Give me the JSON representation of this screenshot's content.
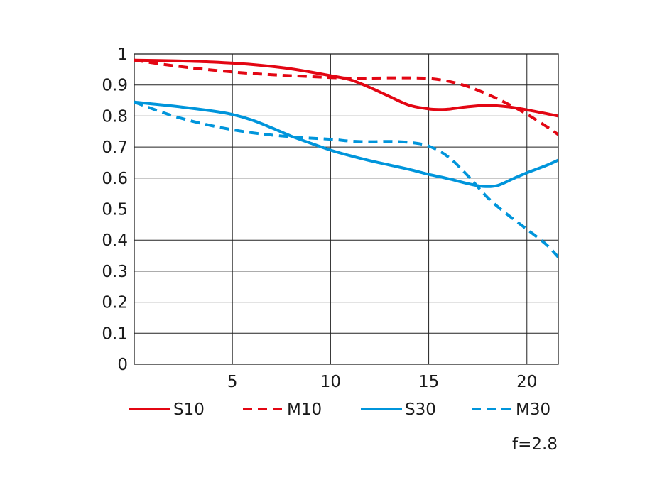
{
  "chart_data": {
    "type": "line",
    "title": "",
    "xlabel": "",
    "ylabel": "",
    "xlim": [
      0,
      21.6
    ],
    "ylim": [
      0,
      1
    ],
    "grid": true,
    "legend_position": "bottom",
    "xticks": [
      5,
      10,
      15,
      20
    ],
    "yticks": [
      0,
      0.1,
      0.2,
      0.3,
      0.4,
      0.5,
      0.6,
      0.7,
      0.8,
      0.9,
      1
    ],
    "ytick_labels": [
      "0",
      "0.1",
      "0.2",
      "0.3",
      "0.4",
      "0.5",
      "0.6",
      "0.7",
      "0.8",
      "0.9",
      "1"
    ],
    "annotation": "f=2.8",
    "series": [
      {
        "name": "S10",
        "color": "#e30613",
        "dash": "solid",
        "points": [
          [
            0,
            0.98
          ],
          [
            2,
            0.978
          ],
          [
            4,
            0.974
          ],
          [
            6,
            0.966
          ],
          [
            8,
            0.952
          ],
          [
            10,
            0.93
          ],
          [
            11,
            0.917
          ],
          [
            12,
            0.892
          ],
          [
            13,
            0.863
          ],
          [
            14,
            0.835
          ],
          [
            15,
            0.823
          ],
          [
            15.6,
            0.821
          ],
          [
            16,
            0.822
          ],
          [
            17,
            0.83
          ],
          [
            18,
            0.834
          ],
          [
            19,
            0.83
          ],
          [
            20,
            0.82
          ],
          [
            21.6,
            0.8
          ]
        ]
      },
      {
        "name": "M10",
        "color": "#e30613",
        "dash": "dashed",
        "points": [
          [
            0,
            0.98
          ],
          [
            2,
            0.962
          ],
          [
            4,
            0.948
          ],
          [
            6,
            0.937
          ],
          [
            8,
            0.93
          ],
          [
            10,
            0.924
          ],
          [
            11,
            0.922
          ],
          [
            12,
            0.922
          ],
          [
            13,
            0.923
          ],
          [
            14,
            0.923
          ],
          [
            15,
            0.921
          ],
          [
            16,
            0.912
          ],
          [
            17,
            0.895
          ],
          [
            18,
            0.87
          ],
          [
            19,
            0.84
          ],
          [
            20,
            0.806
          ],
          [
            21,
            0.766
          ],
          [
            21.6,
            0.74
          ]
        ]
      },
      {
        "name": "S30",
        "color": "#0095db",
        "dash": "solid",
        "points": [
          [
            0,
            0.845
          ],
          [
            2,
            0.832
          ],
          [
            4,
            0.816
          ],
          [
            5,
            0.805
          ],
          [
            6,
            0.787
          ],
          [
            7,
            0.762
          ],
          [
            8,
            0.735
          ],
          [
            9,
            0.712
          ],
          [
            10,
            0.69
          ],
          [
            11,
            0.672
          ],
          [
            12,
            0.656
          ],
          [
            13,
            0.642
          ],
          [
            14,
            0.628
          ],
          [
            15,
            0.612
          ],
          [
            16,
            0.598
          ],
          [
            17,
            0.582
          ],
          [
            17.8,
            0.573
          ],
          [
            18.5,
            0.576
          ],
          [
            19.3,
            0.598
          ],
          [
            20,
            0.617
          ],
          [
            21,
            0.641
          ],
          [
            21.6,
            0.658
          ]
        ]
      },
      {
        "name": "M30",
        "color": "#0095db",
        "dash": "dashed",
        "points": [
          [
            0,
            0.845
          ],
          [
            2,
            0.8
          ],
          [
            4,
            0.768
          ],
          [
            6,
            0.746
          ],
          [
            8,
            0.733
          ],
          [
            10,
            0.725
          ],
          [
            11,
            0.719
          ],
          [
            12,
            0.717
          ],
          [
            13,
            0.718
          ],
          [
            14,
            0.715
          ],
          [
            15,
            0.703
          ],
          [
            16,
            0.668
          ],
          [
            17,
            0.607
          ],
          [
            18,
            0.537
          ],
          [
            19,
            0.483
          ],
          [
            20,
            0.435
          ],
          [
            21,
            0.385
          ],
          [
            21.6,
            0.345
          ]
        ]
      }
    ]
  }
}
